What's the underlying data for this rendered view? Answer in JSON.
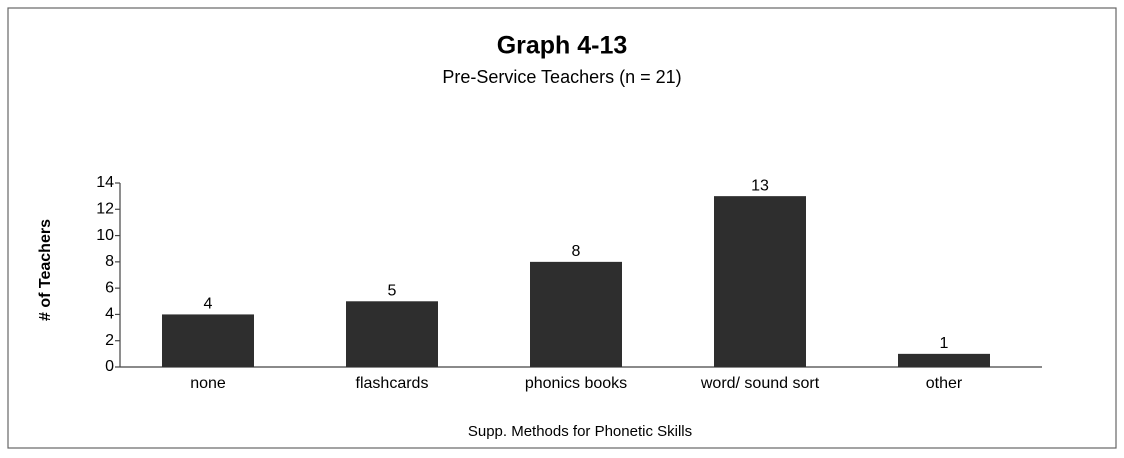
{
  "chart_data": {
    "type": "bar",
    "title": "Graph 4-13",
    "subtitle": "Pre-Service Teachers (n = 21)",
    "y_label": "# of Teachers",
    "x_label": "Supp. Methods for Phonetic Skills",
    "categories": [
      "none",
      "flashcards",
      "phonics books",
      "word/ sound sort",
      "other"
    ],
    "values": [
      4,
      5,
      8,
      13,
      1
    ],
    "color": "#2e2e2e",
    "ylim": [
      0,
      14
    ],
    "yticks": [
      0,
      2,
      4,
      6,
      8,
      10,
      12,
      14
    ],
    "grid": false
  }
}
